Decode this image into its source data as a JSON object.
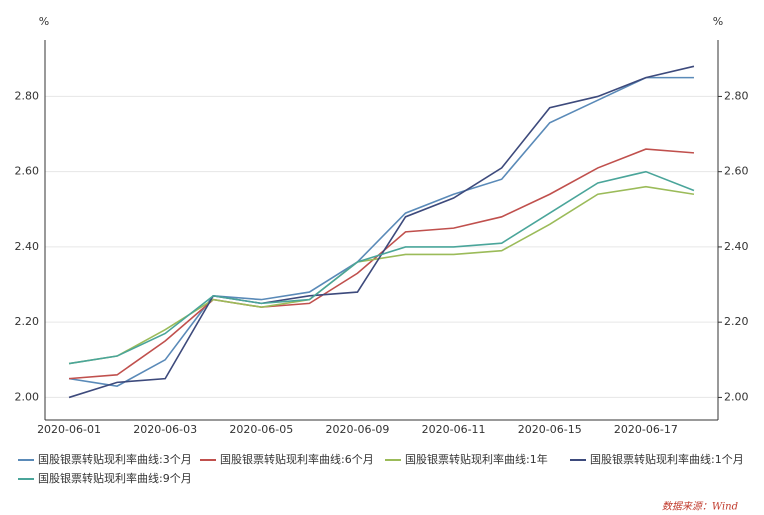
{
  "chart_data": {
    "type": "line",
    "y_label": "%",
    "y2_label": "%",
    "categories": [
      "2020-06-01",
      null,
      "2020-06-03",
      null,
      "2020-06-05",
      null,
      "2020-06-09",
      null,
      "2020-06-11",
      null,
      "2020-06-15",
      null,
      "2020-06-17",
      null
    ],
    "series": [
      {
        "name": "国股银票转贴现利率曲线:3个月",
        "color": "#5a8ab8",
        "values": [
          2.05,
          2.03,
          2.1,
          2.27,
          2.26,
          2.28,
          2.36,
          2.49,
          2.54,
          2.58,
          2.73,
          2.79,
          2.85,
          2.85
        ]
      },
      {
        "name": "国股银票转贴现利率曲线:6个月",
        "color": "#c0504d",
        "values": [
          2.05,
          2.06,
          2.15,
          2.26,
          2.24,
          2.25,
          2.33,
          2.44,
          2.45,
          2.48,
          2.54,
          2.61,
          2.66,
          2.65
        ]
      },
      {
        "name": "国股银票转贴现利率曲线:1年",
        "color": "#9bbb59",
        "values": [
          2.09,
          2.11,
          2.18,
          2.26,
          2.24,
          2.26,
          2.36,
          2.38,
          2.38,
          2.39,
          2.46,
          2.54,
          2.56,
          2.54
        ]
      },
      {
        "name": "国股银票转贴现利率曲线:1个月",
        "color": "#3d4a7c",
        "values": [
          2.0,
          2.04,
          2.05,
          2.27,
          2.25,
          2.27,
          2.28,
          2.48,
          2.53,
          2.61,
          2.77,
          2.8,
          2.85,
          2.88
        ]
      },
      {
        "name": "国股银票转贴现利率曲线:9个月",
        "color": "#4aa59a",
        "values": [
          2.09,
          2.11,
          2.17,
          2.27,
          2.25,
          2.26,
          2.36,
          2.4,
          2.4,
          2.41,
          2.49,
          2.57,
          2.6,
          2.55
        ]
      }
    ],
    "ylim": [
      1.94,
      2.95
    ],
    "yticks": [
      {
        "value": 2,
        "label": "2.00"
      },
      {
        "value": 2.2,
        "label": "2.20"
      },
      {
        "value": 2.4,
        "label": "2.40"
      },
      {
        "value": 2.6,
        "label": "2.60"
      },
      {
        "value": 2.8,
        "label": "2.80"
      }
    ],
    "y2lim": [
      1.94,
      2.95
    ],
    "y2ticks": [
      {
        "value": 2,
        "label": "2.00"
      },
      {
        "value": 2.2,
        "label": "2.20"
      },
      {
        "value": 2.4,
        "label": "2.40"
      },
      {
        "value": 2.6,
        "label": "2.60"
      },
      {
        "value": 2.8,
        "label": "2.80"
      }
    ],
    "grid": true,
    "source": "数据来源：Wind"
  }
}
